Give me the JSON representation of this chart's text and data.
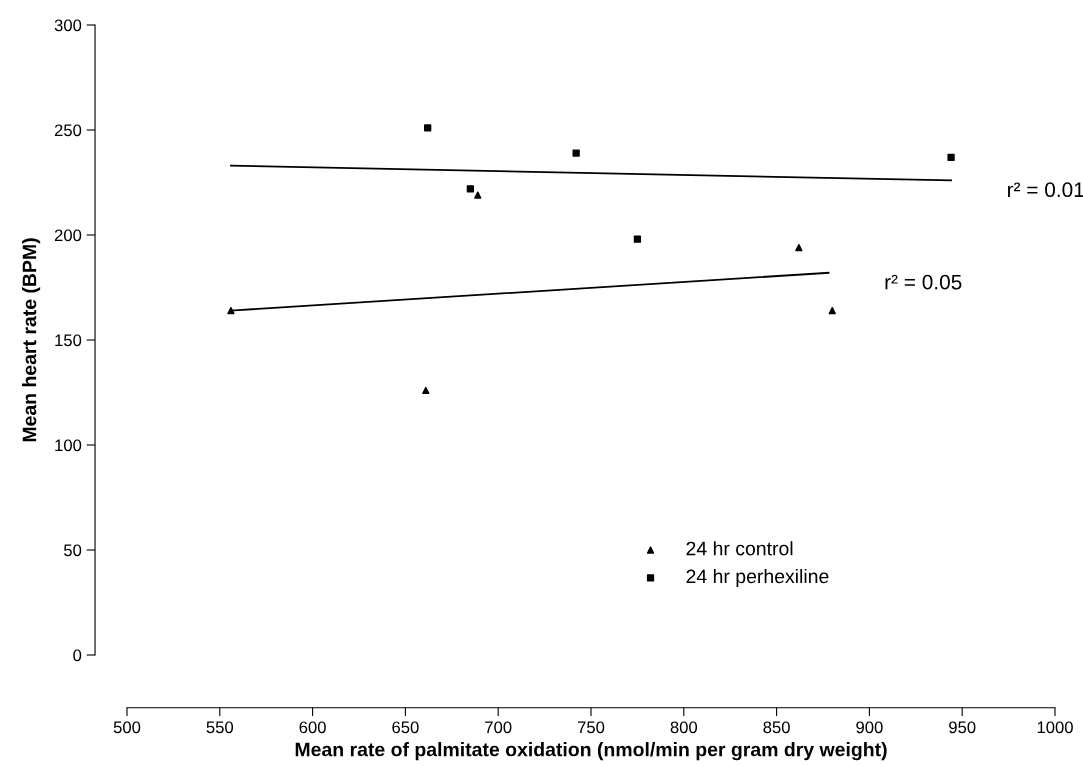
{
  "chart_data": {
    "type": "scatter",
    "xlabel": "Mean rate of palmitate oxidation (nmol/min per gram dry weight)",
    "ylabel": "Mean heart rate (BPM)",
    "xlim": [
      500,
      1000
    ],
    "xticks": [
      500,
      550,
      600,
      650,
      700,
      750,
      800,
      850,
      900,
      950,
      1000
    ],
    "ylim": [
      0,
      300
    ],
    "yticks": [
      0,
      50,
      100,
      150,
      200,
      250,
      300
    ],
    "grid": false,
    "legend": "bottom",
    "series": [
      {
        "name": "24 hr control",
        "color": "#000000",
        "marker": "triangle",
        "x": [
          556,
          661,
          689,
          862,
          880
        ],
        "values": [
          164,
          126,
          219,
          194,
          164
        ]
      },
      {
        "name": "24 hr perhexiline",
        "color": "#000000",
        "marker": "square",
        "x": [
          662,
          685,
          742,
          775,
          944
        ],
        "values": [
          251,
          222,
          239,
          198,
          237
        ]
      },
      {
        "type": "line",
        "name": "r² = 0.05",
        "color": "#000000",
        "marker": "none",
        "x": [
          556,
          878
        ],
        "values": [
          164,
          182
        ]
      },
      {
        "type": "line",
        "name": "r² = 0.01",
        "color": "#000000",
        "marker": "none",
        "x": [
          556,
          944
        ],
        "values": [
          233,
          226
        ]
      }
    ]
  }
}
